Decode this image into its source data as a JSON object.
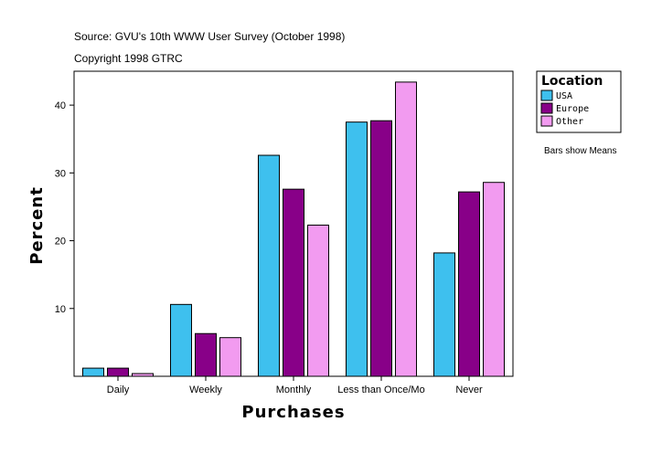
{
  "header": {
    "source": "Source: GVU's 10th WWW User Survey (October 1998)",
    "copyright": "Copyright 1998 GTRC"
  },
  "legend": {
    "title": "Location",
    "note": "Bars show Means"
  },
  "chart_data": {
    "type": "bar",
    "categories": [
      "Daily",
      "Weekly",
      "Monthly",
      "Less than Once/Mo",
      "Never"
    ],
    "series": [
      {
        "name": "USA",
        "color": "#3ec0ee",
        "values": [
          1.2,
          10.6,
          32.6,
          37.5,
          18.2
        ]
      },
      {
        "name": "Europe",
        "color": "#880088",
        "values": [
          1.2,
          6.3,
          27.6,
          37.7,
          27.2
        ]
      },
      {
        "name": "Other",
        "color": "#f29bf0",
        "values": [
          0.4,
          5.7,
          22.3,
          43.4,
          28.6
        ]
      }
    ],
    "title": "",
    "xlabel": "Purchases",
    "ylabel": "Percent",
    "ylim": [
      0,
      45
    ],
    "yticks": [
      10,
      20,
      30,
      40
    ],
    "grid": false,
    "legend_position": "right-top"
  }
}
